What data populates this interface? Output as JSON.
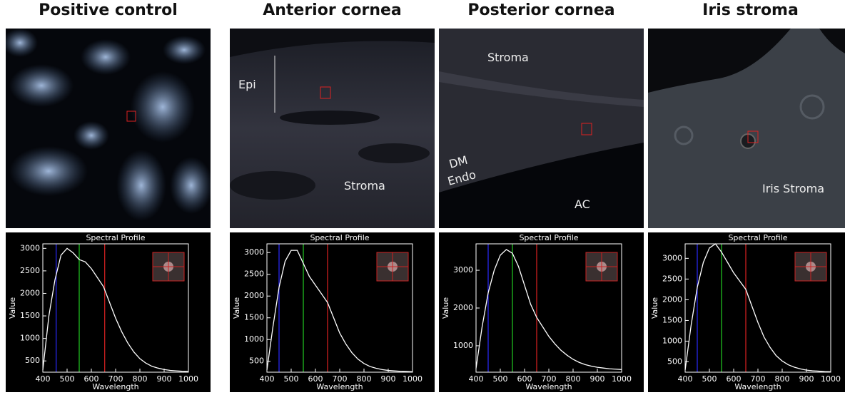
{
  "panels": [
    {
      "title": "Positive control",
      "labels": []
    },
    {
      "title": "Anterior cornea",
      "labels": [
        "Epi",
        "Stroma"
      ]
    },
    {
      "title": "Posterior cornea",
      "labels": [
        "Stroma",
        "DM",
        "Endo",
        "AC"
      ]
    },
    {
      "title": "Iris stroma",
      "labels": [
        "Iris Stroma"
      ]
    }
  ],
  "chart_data": [
    {
      "type": "line",
      "title": "Spectral Profile",
      "x_label": "Wavelength",
      "y_label": "Value",
      "x": [
        400,
        425,
        450,
        475,
        500,
        525,
        550,
        575,
        600,
        625,
        650,
        675,
        700,
        725,
        750,
        775,
        800,
        825,
        850,
        875,
        900,
        925,
        950,
        975,
        1000
      ],
      "series": [
        {
          "color": "#ffffff",
          "values": [
            300,
            1500,
            2300,
            2850,
            3000,
            2900,
            2750,
            2700,
            2550,
            2350,
            2150,
            1800,
            1450,
            1150,
            900,
            700,
            550,
            450,
            380,
            340,
            310,
            290,
            280,
            270,
            265
          ]
        }
      ],
      "xlim": [
        400,
        1000
      ],
      "xticks": [
        400,
        500,
        600,
        700,
        800,
        900,
        1000
      ],
      "ylim": [
        250,
        3100
      ],
      "yticks": [
        500,
        1000,
        1500,
        2000,
        2500,
        3000
      ],
      "vlines": [
        {
          "x": 455,
          "color": "#2a2aff"
        },
        {
          "x": 550,
          "color": "#22cc22"
        },
        {
          "x": 655,
          "color": "#dd2222"
        }
      ]
    },
    {
      "type": "line",
      "title": "Spectral Profile",
      "x_label": "Wavelength",
      "y_label": "Value",
      "x": [
        400,
        425,
        450,
        475,
        500,
        525,
        550,
        575,
        600,
        625,
        650,
        675,
        700,
        725,
        750,
        775,
        800,
        825,
        850,
        875,
        900,
        925,
        950,
        975,
        1000
      ],
      "series": [
        {
          "color": "#ffffff",
          "values": [
            300,
            1300,
            2200,
            2800,
            3050,
            3050,
            2750,
            2450,
            2250,
            2050,
            1850,
            1500,
            1150,
            900,
            700,
            550,
            450,
            380,
            340,
            310,
            290,
            280,
            270,
            265,
            260
          ]
        }
      ],
      "xlim": [
        400,
        1000
      ],
      "xticks": [
        400,
        500,
        600,
        700,
        800,
        900,
        1000
      ],
      "ylim": [
        250,
        3200
      ],
      "yticks": [
        500,
        1000,
        1500,
        2000,
        2500,
        3000
      ],
      "vlines": [
        {
          "x": 450,
          "color": "#2a2aff"
        },
        {
          "x": 550,
          "color": "#22cc22"
        },
        {
          "x": 650,
          "color": "#dd2222"
        }
      ]
    },
    {
      "type": "line",
      "title": "Spectral Profile",
      "x_label": "Wavelength",
      "y_label": "Value",
      "x": [
        400,
        425,
        450,
        475,
        500,
        525,
        550,
        575,
        600,
        625,
        650,
        675,
        700,
        725,
        750,
        775,
        800,
        825,
        850,
        875,
        900,
        925,
        950,
        975,
        1000
      ],
      "series": [
        {
          "color": "#ffffff",
          "values": [
            400,
            1500,
            2400,
            3000,
            3400,
            3550,
            3450,
            3100,
            2600,
            2100,
            1750,
            1500,
            1250,
            1050,
            880,
            750,
            640,
            560,
            500,
            460,
            430,
            410,
            390,
            380,
            370
          ]
        }
      ],
      "xlim": [
        400,
        1000
      ],
      "xticks": [
        400,
        500,
        600,
        700,
        800,
        900,
        1000
      ],
      "ylim": [
        300,
        3700
      ],
      "yticks": [
        1000,
        2000,
        3000
      ],
      "vlines": [
        {
          "x": 450,
          "color": "#2a2aff"
        },
        {
          "x": 550,
          "color": "#22cc22"
        },
        {
          "x": 650,
          "color": "#dd2222"
        }
      ]
    },
    {
      "type": "line",
      "title": "Spectral Profile",
      "x_label": "Wavelength",
      "y_label": "Value",
      "x": [
        400,
        425,
        450,
        475,
        500,
        525,
        550,
        575,
        600,
        625,
        650,
        675,
        700,
        725,
        750,
        775,
        800,
        825,
        850,
        875,
        900,
        925,
        950,
        975,
        1000
      ],
      "series": [
        {
          "color": "#ffffff",
          "values": [
            300,
            1400,
            2300,
            2900,
            3250,
            3350,
            3150,
            2900,
            2650,
            2450,
            2250,
            1850,
            1450,
            1100,
            850,
            650,
            520,
            430,
            370,
            330,
            300,
            285,
            275,
            265,
            260
          ]
        }
      ],
      "xlim": [
        400,
        1000
      ],
      "xticks": [
        400,
        500,
        600,
        700,
        800,
        900,
        1000
      ],
      "ylim": [
        250,
        3350
      ],
      "yticks": [
        500,
        1000,
        1500,
        2000,
        2500,
        3000
      ],
      "vlines": [
        {
          "x": 450,
          "color": "#2a2aff"
        },
        {
          "x": 550,
          "color": "#22cc22"
        },
        {
          "x": 650,
          "color": "#dd2222"
        }
      ]
    }
  ]
}
